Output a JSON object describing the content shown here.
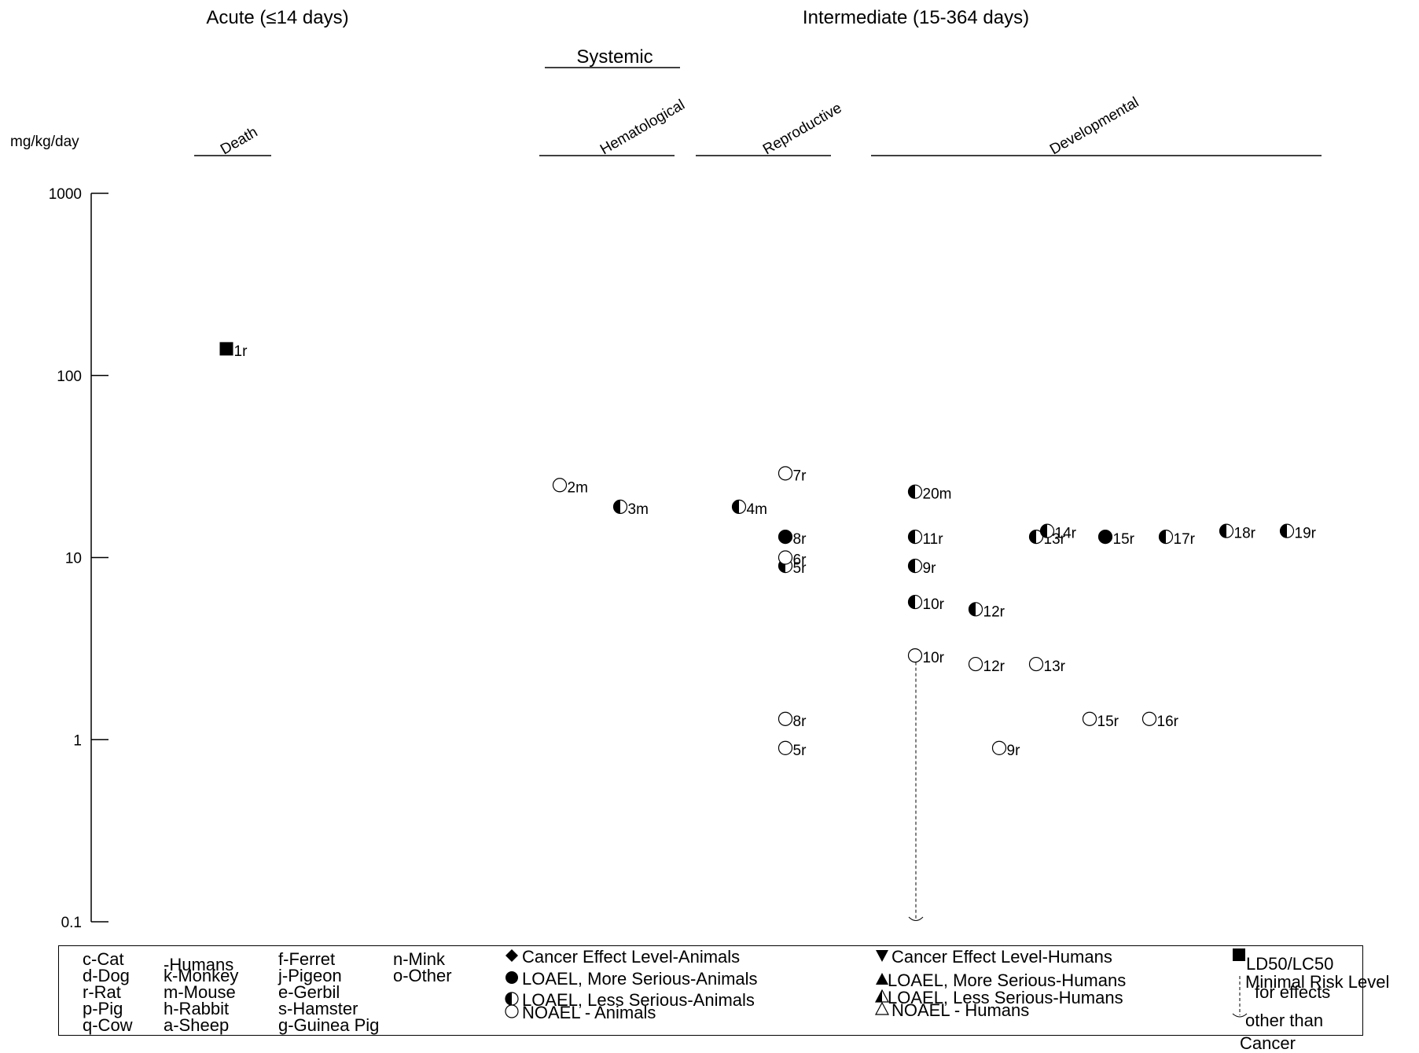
{
  "chart_data": {
    "type": "scatter",
    "y_scale": "log",
    "ylim": [
      0.1,
      1000
    ],
    "ylabel": "mg/kg/day",
    "y_ticks": [
      "1000",
      "100",
      "10",
      "1",
      "0.1"
    ],
    "durations": [
      {
        "id": "acute",
        "label": "Acute (≤14 days)"
      },
      {
        "id": "intermediate",
        "label": "Intermediate (15-364 days)"
      }
    ],
    "group_header": "Systemic",
    "endpoints": [
      {
        "id": "death",
        "label": "Death"
      },
      {
        "id": "hematological",
        "label": "Hematological"
      },
      {
        "id": "reproductive",
        "label": "Reproductive"
      },
      {
        "id": "developmental",
        "label": "Developmental"
      }
    ],
    "points": [
      {
        "label": "1r",
        "endpoint": "death",
        "y": 140,
        "symbol": "square"
      },
      {
        "label": "2m",
        "endpoint": "hematological",
        "y": 25,
        "symbol": "open"
      },
      {
        "label": "3m",
        "endpoint": "hematological",
        "y": 19,
        "symbol": "half"
      },
      {
        "label": "4m",
        "endpoint": "hematological",
        "y": 19,
        "symbol": "half"
      },
      {
        "label": "5r",
        "endpoint": "reproductive",
        "y": 9,
        "symbol": "half"
      },
      {
        "label": "5r",
        "endpoint": "reproductive",
        "y": 0.9,
        "symbol": "open"
      },
      {
        "label": "6r",
        "endpoint": "reproductive",
        "y": 10,
        "symbol": "open"
      },
      {
        "label": "7r",
        "endpoint": "reproductive",
        "y": 29,
        "symbol": "open"
      },
      {
        "label": "8r",
        "endpoint": "reproductive",
        "y": 13,
        "symbol": "filled"
      },
      {
        "label": "8r",
        "endpoint": "reproductive",
        "y": 1.3,
        "symbol": "open"
      },
      {
        "label": "20m",
        "endpoint": "developmental",
        "y": 23,
        "symbol": "half"
      },
      {
        "label": "11r",
        "endpoint": "developmental",
        "y": 13,
        "symbol": "half"
      },
      {
        "label": "9r",
        "endpoint": "developmental",
        "y": 9,
        "symbol": "half"
      },
      {
        "label": "10r",
        "endpoint": "developmental",
        "y": 5.7,
        "symbol": "half"
      },
      {
        "label": "10r",
        "endpoint": "developmental",
        "y": 2.9,
        "symbol": "open"
      },
      {
        "label": "12r",
        "endpoint": "developmental",
        "y": 5.2,
        "symbol": "half"
      },
      {
        "label": "12r",
        "endpoint": "developmental",
        "y": 2.6,
        "symbol": "open"
      },
      {
        "label": "13r",
        "endpoint": "developmental",
        "y": 13,
        "symbol": "half"
      },
      {
        "label": "13r",
        "endpoint": "developmental",
        "y": 2.6,
        "symbol": "open"
      },
      {
        "label": "9r",
        "endpoint": "developmental",
        "y": 0.9,
        "symbol": "open"
      },
      {
        "label": "14r",
        "endpoint": "developmental",
        "y": 14,
        "symbol": "half"
      },
      {
        "label": "15r",
        "endpoint": "developmental",
        "y": 13,
        "symbol": "filled"
      },
      {
        "label": "15r",
        "endpoint": "developmental",
        "y": 1.3,
        "symbol": "open"
      },
      {
        "label": "16r",
        "endpoint": "developmental",
        "y": 1.3,
        "symbol": "open"
      },
      {
        "label": "17r",
        "endpoint": "developmental",
        "y": 13,
        "symbol": "half"
      },
      {
        "label": "18r",
        "endpoint": "developmental",
        "y": 14,
        "symbol": "half"
      },
      {
        "label": "19r",
        "endpoint": "developmental",
        "y": 14,
        "symbol": "half"
      }
    ],
    "mrl_line": {
      "endpoint": "developmental",
      "from_y": 2.9,
      "to_y": 0.1
    }
  },
  "legend": {
    "species": [
      [
        "c-Cat",
        "d-Dog",
        "r-Rat",
        "p-Pig",
        "q-Cow"
      ],
      [
        "-Humans",
        "k-Monkey",
        "m-Mouse",
        "h-Rabbit",
        "a-Sheep"
      ],
      [
        "f-Ferret",
        "j-Pigeon",
        "e-Gerbil",
        "s-Hamster",
        "g-Guinea Pig"
      ],
      [
        "n-Mink",
        "o-Other"
      ]
    ],
    "animals": [
      {
        "symbol": "diamond",
        "text": "Cancer Effect Level-Animals"
      },
      {
        "symbol": "filled",
        "text": "LOAEL, More Serious-Animals"
      },
      {
        "symbol": "half",
        "text": "LOAEL, Less Serious-Animals"
      },
      {
        "symbol": "open",
        "text": "NOAEL - Animals"
      }
    ],
    "humans": [
      {
        "symbol": "tri-down",
        "text": "Cancer Effect Level-Humans"
      },
      {
        "symbol": "tri-up",
        "text": "LOAEL, More Serious-Humans"
      },
      {
        "symbol": "tri-half",
        "text": "LOAEL, Less Serious-Humans"
      },
      {
        "symbol": "tri-open",
        "text": "NOAEL - Humans"
      }
    ],
    "other": {
      "ld50": "LD50/LC50",
      "mrl": [
        "Minimal Risk Level",
        "for effects",
        "other than",
        "Cancer"
      ]
    }
  }
}
